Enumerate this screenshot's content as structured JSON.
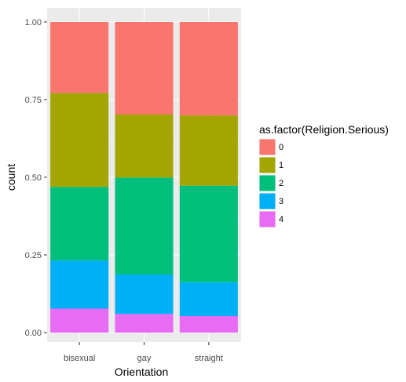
{
  "chart_data": {
    "type": "bar",
    "stacked": true,
    "categories": [
      "bisexual",
      "gay",
      "straight"
    ],
    "xlabel": "Orientation",
    "ylabel": "count",
    "ylim": [
      0,
      1
    ],
    "yticks": [
      "0.00",
      "0.25",
      "0.50",
      "0.75",
      "1.00"
    ],
    "grid": true,
    "legend": {
      "title": "as.factor(Religion.Serious)",
      "position": "right"
    },
    "series": [
      {
        "name": "0",
        "color": "#F8766D",
        "values": [
          0.229,
          0.298,
          0.301
        ]
      },
      {
        "name": "1",
        "color": "#A3A500",
        "values": [
          0.302,
          0.203,
          0.226
        ]
      },
      {
        "name": "2",
        "color": "#00BF7D",
        "values": [
          0.237,
          0.312,
          0.311
        ]
      },
      {
        "name": "3",
        "color": "#00B0F6",
        "values": [
          0.155,
          0.127,
          0.109
        ]
      },
      {
        "name": "4",
        "color": "#E76BF3",
        "values": [
          0.077,
          0.06,
          0.053
        ]
      }
    ]
  }
}
